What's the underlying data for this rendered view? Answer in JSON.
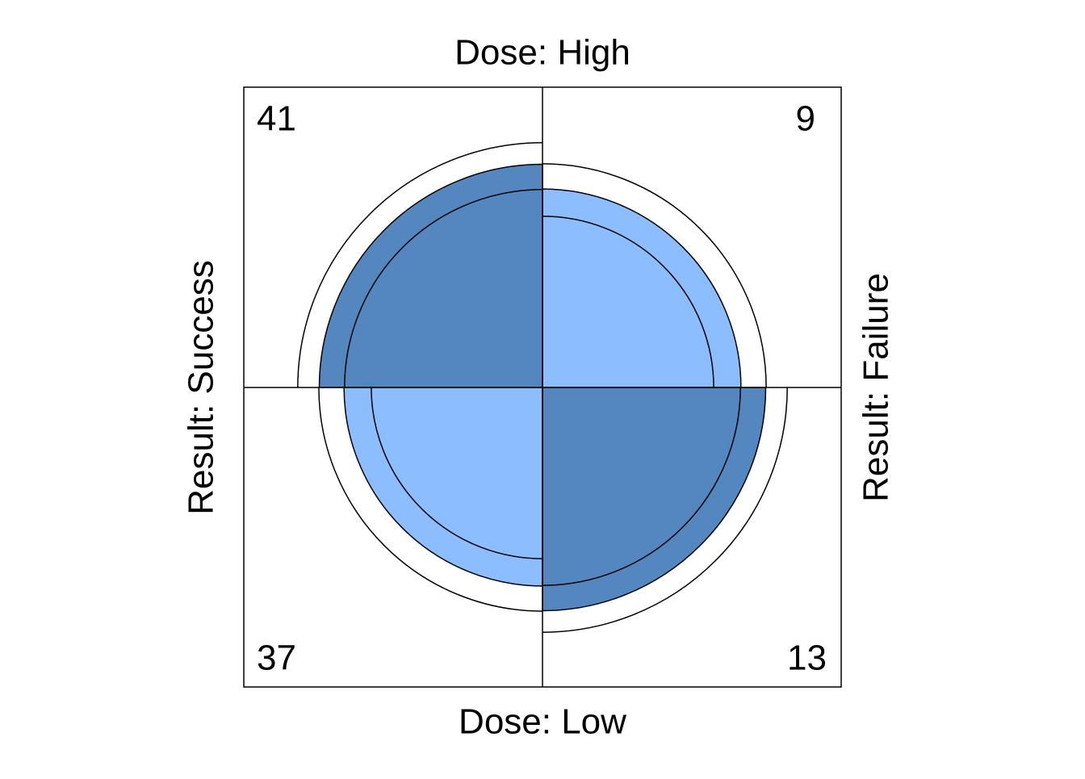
{
  "chart_data": {
    "type": "fourfold",
    "top_label": "Dose: High",
    "bottom_label": "Dose: Low",
    "left_label": "Result: Success",
    "right_label": "Result: Failure",
    "values": [
      41,
      9,
      37,
      13
    ],
    "colors": [
      "#5486C0",
      "#8CBEFF"
    ],
    "conf_level": 0.95
  }
}
